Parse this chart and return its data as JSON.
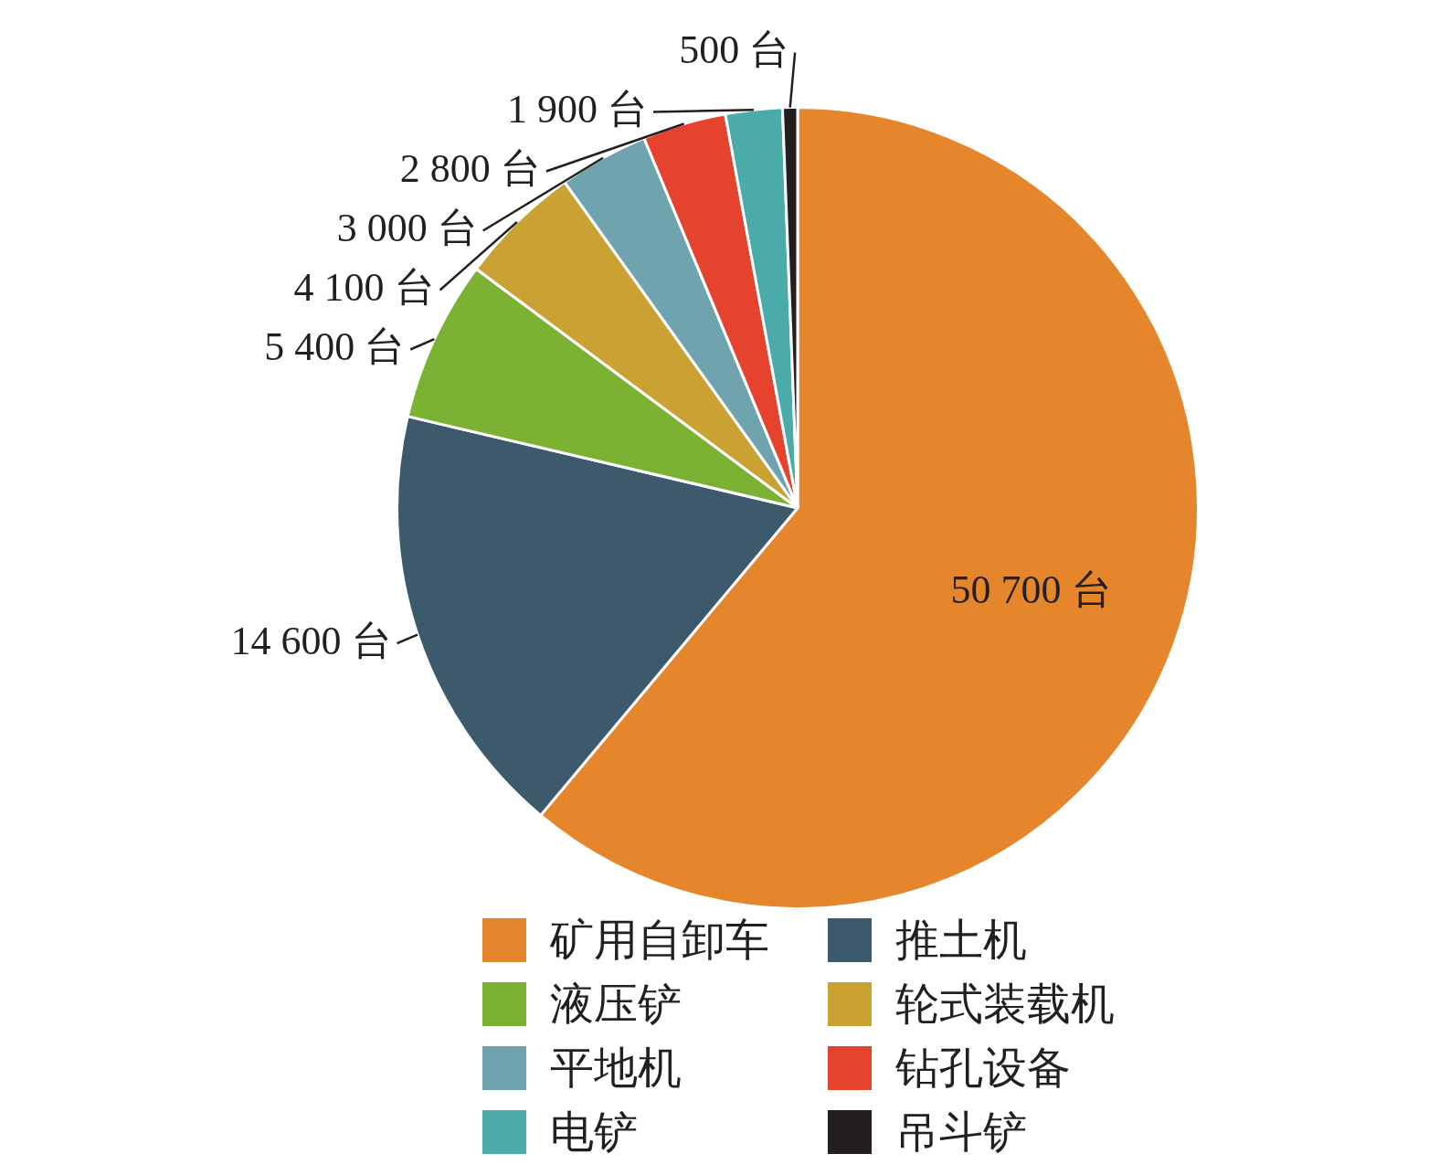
{
  "chart_data": {
    "type": "pie",
    "categories": [
      "矿用自卸车",
      "推土机",
      "液压铲",
      "轮式装载机",
      "平地机",
      "钻孔设备",
      "电铲",
      "吊斗铲"
    ],
    "values": [
      50700,
      14600,
      5400,
      4100,
      3000,
      2800,
      1900,
      500
    ],
    "value_labels": [
      "50 700 台",
      "14 600 台",
      "5 400 台",
      "4 100 台",
      "3 000 台",
      "2 800 台",
      "1 900 台",
      "500 台"
    ],
    "colors": [
      "#e5852c",
      "#3d5a6c",
      "#7bb234",
      "#c9a233",
      "#6fa4ae",
      "#e5432e",
      "#4aaba8",
      "#231f20"
    ],
    "legend": "bottom"
  }
}
